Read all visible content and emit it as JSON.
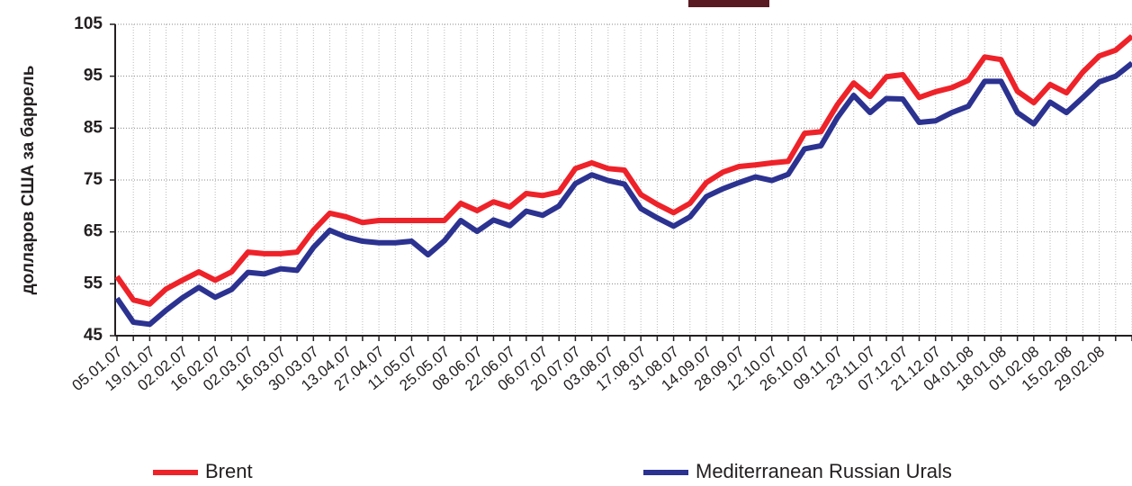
{
  "chart_data": {
    "type": "line",
    "y_label": "долларов США за баррель",
    "categories": [
      "05.01.07",
      null,
      "19.01.07",
      null,
      "02.02.07",
      null,
      "16.02.07",
      null,
      "02.03.07",
      null,
      "16.03.07",
      null,
      "30.03.07",
      null,
      "13.04.07",
      null,
      "27.04.07",
      null,
      "11.05.07",
      null,
      "25.05.07",
      null,
      "08.06.07",
      null,
      "22.06.07",
      null,
      "06.07.07",
      null,
      "20.07.07",
      null,
      "03.08.07",
      null,
      "17.08.07",
      null,
      "31.08.07",
      null,
      "14.09.07",
      null,
      "28.09.07",
      null,
      "12.10.07",
      null,
      "26.10.07",
      null,
      "09.11.07",
      null,
      "23.11.07",
      null,
      "07.12.07",
      null,
      "21.12.07",
      null,
      "04.01.08",
      null,
      "18.01.08",
      null,
      "01.02.08",
      null,
      "15.02.08",
      null,
      "29.02.08",
      null,
      null
    ],
    "series": [
      {
        "name": "Brent",
        "color": "#ee2229",
        "values": [
          56.4,
          51.9,
          51.1,
          54,
          55.7,
          57.3,
          55.7,
          57.3,
          61.1,
          60.8,
          60.8,
          61.1,
          65.3,
          68.6,
          67.9,
          66.8,
          67.2,
          67.2,
          67.2,
          67.2,
          67.2,
          70.5,
          69.1,
          70.8,
          69.8,
          72.4,
          72,
          72.7,
          77.2,
          78.3,
          77.2,
          76.9,
          72.2,
          70.3,
          68.7,
          70.5,
          74.5,
          76.5,
          77.6,
          77.9,
          78.3,
          78.6,
          84,
          84.3,
          89.5,
          93.7,
          91.1,
          94.9,
          95.3,
          90.9,
          92,
          92.8,
          94.2,
          98.7,
          98.2,
          92.1,
          89.9,
          93.4,
          91.8,
          95.8,
          98.9,
          100,
          102.7
        ]
      },
      {
        "name": "Mediterranean Russian Urals",
        "color": "#2b3290",
        "values": [
          52.2,
          47.6,
          47.2,
          49.9,
          52.3,
          54.3,
          52.4,
          53.9,
          57.2,
          56.9,
          57.9,
          57.6,
          62,
          65.3,
          64,
          63.2,
          62.9,
          62.9,
          63.2,
          60.6,
          63.3,
          67.2,
          65.1,
          67.3,
          66.2,
          69,
          68.2,
          70,
          74.3,
          76,
          74.9,
          74.2,
          69.5,
          67.7,
          66.1,
          67.9,
          71.8,
          73.3,
          74.5,
          75.6,
          74.9,
          76.1,
          81,
          81.6,
          87,
          91.3,
          88,
          90.7,
          90.6,
          86.1,
          86.4,
          88,
          89.2,
          94,
          94,
          88,
          85.8,
          90,
          88,
          90.9,
          93.9,
          95,
          97.5
        ]
      }
    ],
    "ylim": [
      45,
      105
    ],
    "yticks": [
      45,
      55,
      65,
      75,
      85,
      95,
      105
    ],
    "grid": true
  }
}
